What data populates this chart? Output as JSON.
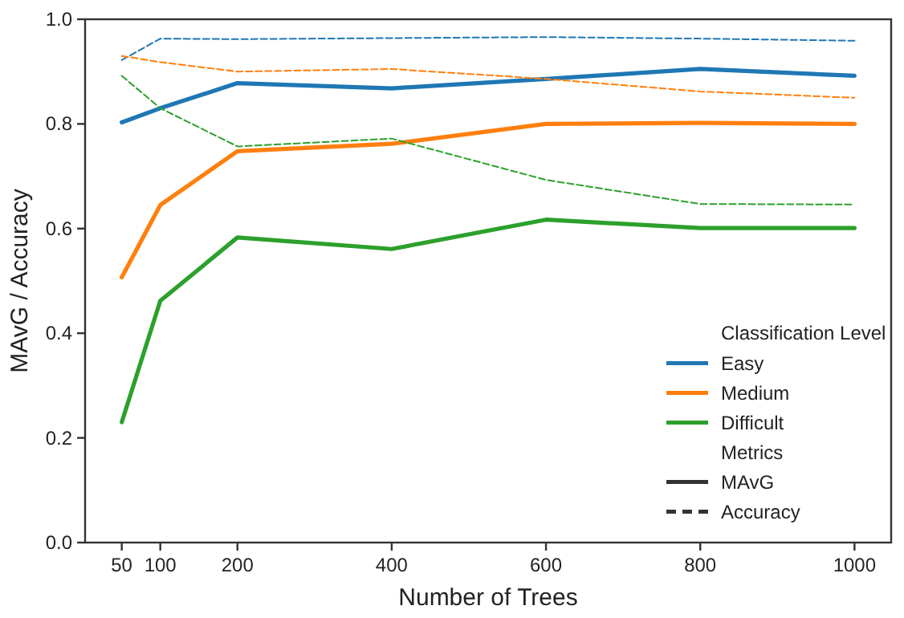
{
  "chart_data": {
    "type": "line",
    "xlabel": "Number of Trees",
    "ylabel": "MAvG / Accuracy",
    "x": [
      50,
      100,
      200,
      400,
      600,
      800,
      1000
    ],
    "xlim": [
      2.5,
      1047.5
    ],
    "xticks": [
      50,
      100,
      200,
      400,
      600,
      800,
      1000
    ],
    "ylim": [
      0,
      1
    ],
    "yticks": [
      {
        "value": 0,
        "label": "0.0"
      },
      {
        "value": 0.2,
        "label": "0.2"
      },
      {
        "value": 0.4,
        "label": "0.4"
      },
      {
        "value": 0.6,
        "label": "0.6"
      },
      {
        "value": 0.8,
        "label": "0.8"
      },
      {
        "value": 1,
        "label": "1.0"
      }
    ],
    "grid": false,
    "legend": "bottom right",
    "legend_title": "Classification Level",
    "marker": "none",
    "series": [
      {
        "name": "Easy",
        "color": "#1f77b4",
        "line_style": "solid",
        "values": [
          0.803,
          0.83,
          0.878,
          0.868,
          0.886,
          0.905,
          0.892
        ]
      },
      {
        "name": "Medium",
        "color": "#ff7f0e",
        "line_style": "solid",
        "values": [
          0.507,
          0.645,
          0.748,
          0.762,
          0.8,
          0.802,
          0.8
        ]
      },
      {
        "name": "Difficult",
        "color": "#2ca02c",
        "line_style": "solid",
        "values": [
          0.23,
          0.462,
          0.583,
          0.561,
          0.617,
          0.601,
          0.601
        ]
      },
      {
        "color": "#1f77b4",
        "line_style": "dashed",
        "values": [
          0.922,
          0.963,
          0.962,
          0.964,
          0.966,
          0.963,
          0.959
        ]
      },
      {
        "color": "#ff7f0e",
        "line_style": "dashed",
        "values": [
          0.93,
          0.918,
          0.9,
          0.905,
          0.886,
          0.862,
          0.85
        ]
      },
      {
        "color": "#2ca02c",
        "line_style": "dashed",
        "values": [
          0.892,
          0.83,
          0.757,
          0.772,
          0.693,
          0.647,
          0.646
        ]
      }
    ],
    "annotations": [
      "Metrics",
      "MAvG",
      "Accuracy"
    ]
  }
}
